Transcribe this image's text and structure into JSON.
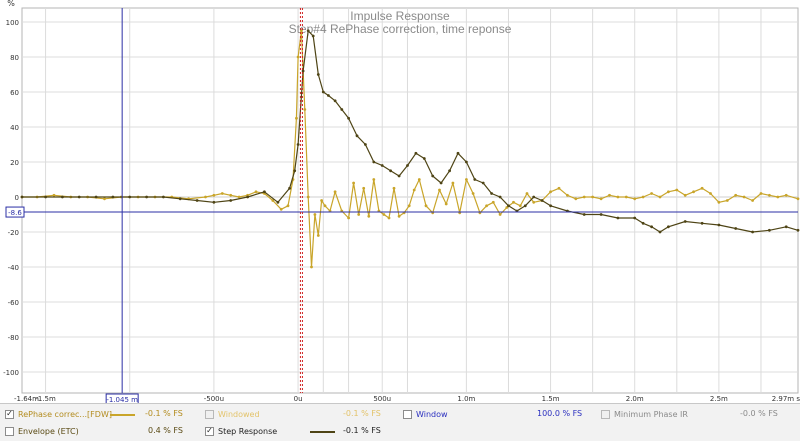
{
  "title": "Impulse Response",
  "subtitle": "Step#4 RePhase correction, time reponse",
  "colors": {
    "impulse": "#c9a52a",
    "step": "#4e4415",
    "marker": "#2b2fa6",
    "cursor": "#d02020",
    "grid": "#dcdcdc",
    "legend_bg": "#f2f2f2"
  },
  "cursor": {
    "y_readout": "-8.6",
    "x_readout": "-1.045 m"
  },
  "legend": {
    "items": [
      {
        "label": "RePhase correc...[FDW]",
        "value": "-0.1 % FS",
        "checked": true,
        "enabled": true,
        "color": "#b38c1f",
        "swatch": "#c9a52a"
      },
      {
        "label": "Windowed",
        "value": "-0.1 % FS",
        "checked": false,
        "enabled": false,
        "color": "#e3c36a",
        "swatch": ""
      },
      {
        "label": "Window",
        "value": "100.0 % FS",
        "checked": false,
        "enabled": true,
        "color": "#2a2fbf",
        "swatch": ""
      },
      {
        "label": "Minimum Phase IR",
        "value": "-0.0 % FS",
        "checked": false,
        "enabled": false,
        "color": "#8a8a8a",
        "swatch": ""
      },
      {
        "label": "Envelope (ETC)",
        "value": "0.4 % FS",
        "checked": false,
        "enabled": true,
        "color": "#5a4a14",
        "swatch": ""
      },
      {
        "label": "Step Response",
        "value": "-0.1 % FS",
        "checked": true,
        "enabled": true,
        "color": "#222222",
        "swatch": "#4e4415"
      }
    ]
  },
  "chart_data": {
    "type": "line",
    "title": "Impulse Response",
    "subtitle": "Step#4 RePhase correction, time reponse",
    "ylabel": "%",
    "xlabel": "",
    "xlim": [
      -1.64,
      2.97
    ],
    "ylim": [
      -112,
      108
    ],
    "x_unit": "ms",
    "x_ticks": [
      {
        "v": -1.64,
        "label": "-1.64m"
      },
      {
        "v": -1.5,
        "label": "-1.5m"
      },
      {
        "v": -0.5,
        "label": "-500u"
      },
      {
        "v": 0,
        "label": "0u"
      },
      {
        "v": 0.5,
        "label": "500u"
      },
      {
        "v": 1.0,
        "label": "1.0m"
      },
      {
        "v": 1.5,
        "label": "1.5m"
      },
      {
        "v": 2.0,
        "label": "2.0m"
      },
      {
        "v": 2.5,
        "label": "2.5m"
      },
      {
        "v": 2.97,
        "label": "2.97m s"
      }
    ],
    "x_minor_ticks": [
      -1.0,
      0.15,
      0.3,
      0.65,
      1.25,
      1.75,
      2.25,
      2.75
    ],
    "y_ticks": [
      100,
      80,
      60,
      40,
      20,
      0,
      -20,
      -40,
      -60,
      -80,
      -100
    ],
    "grid": true,
    "markers": {
      "vertical_x": -1.045,
      "horizontal_y": -8.6,
      "cursor_x": 0.02
    },
    "series": [
      {
        "name": "RePhase correc...[FDW]",
        "color": "#c9a52a",
        "x": [
          -1.64,
          -1.55,
          -1.45,
          -1.35,
          -1.25,
          -1.15,
          -1.05,
          -0.95,
          -0.85,
          -0.75,
          -0.65,
          -0.55,
          -0.5,
          -0.45,
          -0.4,
          -0.35,
          -0.3,
          -0.25,
          -0.2,
          -0.15,
          -0.1,
          -0.06,
          -0.03,
          -0.01,
          0.0,
          0.02,
          0.04,
          0.06,
          0.08,
          0.1,
          0.12,
          0.14,
          0.16,
          0.19,
          0.22,
          0.26,
          0.3,
          0.33,
          0.36,
          0.39,
          0.42,
          0.45,
          0.48,
          0.51,
          0.54,
          0.57,
          0.6,
          0.63,
          0.66,
          0.69,
          0.72,
          0.76,
          0.8,
          0.84,
          0.88,
          0.92,
          0.96,
          1.0,
          1.04,
          1.08,
          1.12,
          1.16,
          1.2,
          1.24,
          1.28,
          1.32,
          1.36,
          1.4,
          1.45,
          1.5,
          1.55,
          1.6,
          1.65,
          1.7,
          1.75,
          1.8,
          1.85,
          1.9,
          1.95,
          2.0,
          2.05,
          2.1,
          2.15,
          2.2,
          2.25,
          2.3,
          2.35,
          2.4,
          2.45,
          2.5,
          2.55,
          2.6,
          2.65,
          2.7,
          2.75,
          2.8,
          2.85,
          2.9,
          2.97
        ],
        "y": [
          0,
          0,
          1,
          0,
          0,
          -1,
          0,
          0,
          0,
          0,
          -1,
          0,
          1,
          2,
          1,
          0,
          1,
          3,
          2,
          -2,
          -7,
          -5,
          10,
          45,
          80,
          95,
          50,
          0,
          -40,
          -10,
          -22,
          -2,
          -5,
          -8,
          3,
          -8,
          -12,
          8,
          -10,
          5,
          -11,
          10,
          -8,
          -10,
          -12,
          5,
          -11,
          -9,
          -5,
          4,
          10,
          -5,
          -9,
          4,
          -4,
          8,
          -9,
          10,
          2,
          -9,
          -5,
          -3,
          -10,
          -6,
          -3,
          -5,
          2,
          -3,
          -2,
          3,
          5,
          1,
          -1,
          0,
          0,
          -1,
          1,
          0,
          0,
          -1,
          0,
          2,
          0,
          3,
          4,
          1,
          3,
          5,
          2,
          -3,
          -2,
          1,
          0,
          -2,
          2,
          1,
          0,
          1,
          -1
        ]
      },
      {
        "name": "Step Response",
        "color": "#4e4415",
        "x": [
          -1.64,
          -1.5,
          -1.4,
          -1.3,
          -1.2,
          -1.1,
          -1.0,
          -0.9,
          -0.8,
          -0.7,
          -0.6,
          -0.5,
          -0.4,
          -0.3,
          -0.2,
          -0.12,
          -0.05,
          -0.02,
          0.0,
          0.03,
          0.06,
          0.09,
          0.12,
          0.15,
          0.18,
          0.22,
          0.26,
          0.3,
          0.35,
          0.4,
          0.45,
          0.5,
          0.55,
          0.6,
          0.65,
          0.7,
          0.75,
          0.8,
          0.85,
          0.9,
          0.95,
          1.0,
          1.05,
          1.1,
          1.15,
          1.2,
          1.25,
          1.3,
          1.35,
          1.4,
          1.45,
          1.5,
          1.6,
          1.7,
          1.8,
          1.9,
          2.0,
          2.05,
          2.1,
          2.15,
          2.2,
          2.3,
          2.4,
          2.5,
          2.6,
          2.7,
          2.8,
          2.9,
          2.97
        ],
        "y": [
          0,
          0,
          0,
          0,
          0,
          0,
          0,
          0,
          0,
          -1,
          -2,
          -3,
          -2,
          0,
          3,
          -3,
          5,
          15,
          30,
          72,
          95,
          92,
          70,
          60,
          58,
          55,
          50,
          45,
          35,
          30,
          20,
          18,
          15,
          12,
          18,
          25,
          22,
          12,
          8,
          15,
          25,
          20,
          10,
          8,
          2,
          0,
          -5,
          -8,
          -5,
          0,
          -2,
          -5,
          -8,
          -10,
          -10,
          -12,
          -12,
          -15,
          -17,
          -20,
          -17,
          -14,
          -15,
          -16,
          -18,
          -20,
          -19,
          -17,
          -19
        ]
      }
    ]
  }
}
